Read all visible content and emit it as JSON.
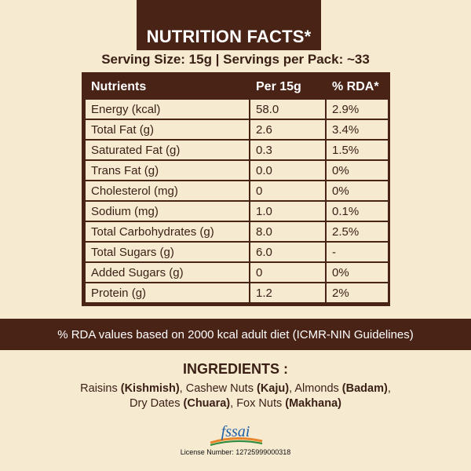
{
  "header": {
    "title": "NUTRITION FACTS*"
  },
  "serving": {
    "text": "Serving Size: 15g | Servings per Pack: ~33"
  },
  "table": {
    "headers": [
      "Nutrients",
      "Per 15g",
      "% RDA*"
    ],
    "rows": [
      [
        "Energy (kcal)",
        "58.0",
        "2.9%"
      ],
      [
        "Total Fat (g)",
        "2.6",
        "3.4%"
      ],
      [
        "Saturated Fat (g)",
        "0.3",
        "1.5%"
      ],
      [
        "Trans Fat (g)",
        "0.0",
        "0%"
      ],
      [
        "Cholesterol (mg)",
        "0",
        "0%"
      ],
      [
        "Sodium (mg)",
        "1.0",
        "0.1%"
      ],
      [
        "Total Carbohydrates (g)",
        "8.0",
        "2.5%"
      ],
      [
        "Total Sugars (g)",
        "6.0",
        "-"
      ],
      [
        "Added Sugars (g)",
        "0",
        "0%"
      ],
      [
        "Protein (g)",
        "1.2",
        "2%"
      ]
    ]
  },
  "rda_note": "% RDA values based on 2000 kcal adult diet (ICMR-NIN Guidelines)",
  "ingredients": {
    "title": "INGREDIENTS :",
    "items": [
      {
        "name": "Raisins",
        "alias": "(Kishmish)",
        "sep": ", "
      },
      {
        "name": "Cashew Nuts",
        "alias": "(Kaju)",
        "sep": ", "
      },
      {
        "name": "Almonds",
        "alias": "(Badam)",
        "sep": ","
      },
      {
        "name": "Dry Dates",
        "alias": "(Chuara)",
        "sep": ", "
      },
      {
        "name": "Fox Nuts",
        "alias": "(Makhana)",
        "sep": ""
      }
    ]
  },
  "fssai": {
    "logo_text": "fssai",
    "license": "License Number: 12725999000318"
  },
  "colors": {
    "brown": "#4a2317",
    "cream": "#f6ead0",
    "orange": "#e8842a",
    "green": "#2f8a3a",
    "blue": "#1f5fa8"
  }
}
